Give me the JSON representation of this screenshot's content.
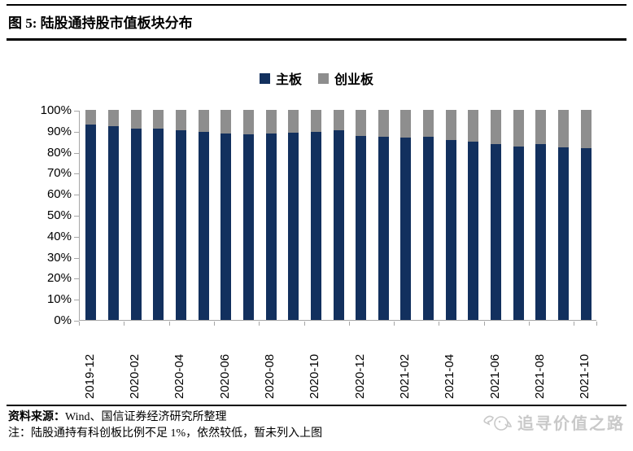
{
  "figure": {
    "label": "图 5:",
    "title": "陆股通持股市值板块分布"
  },
  "legend": {
    "items": [
      {
        "label": "主板",
        "color": "#12305e"
      },
      {
        "label": "创业板",
        "color": "#8e8e8e"
      }
    ]
  },
  "chart_data": {
    "type": "bar",
    "stacked": true,
    "stack_total": 100,
    "title": "陆股通持股市值板块分布",
    "xlabel": "",
    "ylabel": "",
    "ylim": [
      0,
      100
    ],
    "grid": false,
    "legend_position": "top-center",
    "y_tick_labels": [
      "100%",
      "90%",
      "80%",
      "70%",
      "60%",
      "50%",
      "40%",
      "30%",
      "20%",
      "10%",
      "0%"
    ],
    "y_tick_values": [
      100,
      90,
      80,
      70,
      60,
      50,
      40,
      30,
      20,
      10,
      0
    ],
    "categories": [
      "2019-12",
      "2020-01",
      "2020-02",
      "2020-03",
      "2020-04",
      "2020-05",
      "2020-06",
      "2020-07",
      "2020-08",
      "2020-09",
      "2020-10",
      "2020-11",
      "2020-12",
      "2021-01",
      "2021-02",
      "2021-03",
      "2021-04",
      "2021-05",
      "2021-06",
      "2021-07",
      "2021-08",
      "2021-09",
      "2021-10"
    ],
    "visible_x_tick_labels": [
      "2019-12",
      "2020-02",
      "2020-04",
      "2020-06",
      "2020-08",
      "2020-10",
      "2020-12",
      "2021-02",
      "2021-04",
      "2021-06",
      "2021-08",
      "2021-10"
    ],
    "x_label_every": 2,
    "series": [
      {
        "name": "主板",
        "color": "#12305e",
        "values": [
          93.0,
          92.3,
          91.0,
          91.0,
          90.4,
          89.7,
          88.9,
          88.4,
          88.8,
          89.0,
          89.4,
          90.2,
          87.6,
          87.1,
          86.8,
          87.1,
          85.5,
          84.9,
          83.6,
          82.7,
          83.6,
          82.3,
          81.9
        ]
      },
      {
        "name": "创业板",
        "color": "#8e8e8e",
        "values": [
          7.0,
          7.7,
          9.0,
          9.0,
          9.6,
          10.3,
          11.1,
          11.6,
          11.2,
          11.0,
          10.6,
          9.8,
          12.4,
          12.9,
          13.2,
          12.9,
          14.5,
          15.1,
          16.4,
          17.3,
          16.4,
          17.7,
          18.1
        ]
      }
    ],
    "axis_color": "#a6a6a6"
  },
  "footer": {
    "source_label": "资料来源：",
    "source_text": "Wind、国信证券经济研究所整理",
    "note": "注：陆股通持有科创板比例不足 1%，依然较低，暂未列入上图"
  },
  "watermark": {
    "text": "追寻价值之路"
  }
}
